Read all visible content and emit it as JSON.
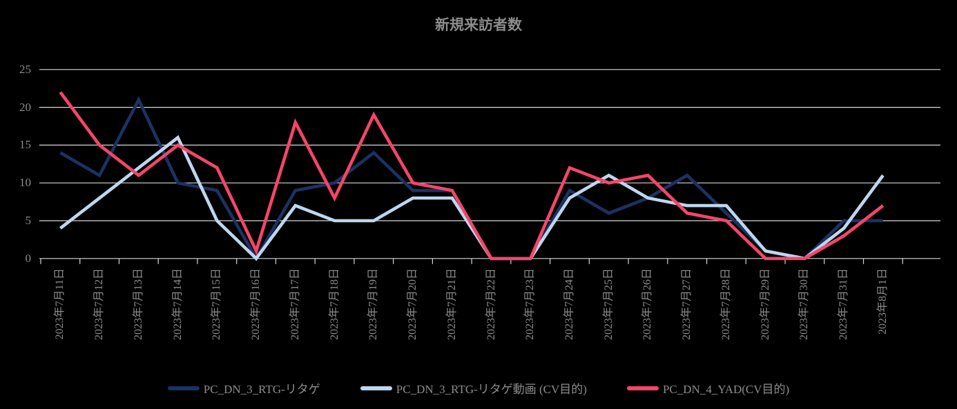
{
  "colors": {
    "background": "#000000",
    "text": "#8c8c8c",
    "gridline": "#d9d9d9"
  },
  "chart_data": {
    "type": "line",
    "title": "新規来訪者数",
    "categories": [
      "2023年7月11日",
      "2023年7月12日",
      "2023年7月13日",
      "2023年7月14日",
      "2023年7月15日",
      "2023年7月16日",
      "2023年7月17日",
      "2023年7月18日",
      "2023年7月19日",
      "2023年7月20日",
      "2023年7月21日",
      "2023年7月22日",
      "2023年7月23日",
      "2023年7月24日",
      "2023年7月25日",
      "2023年7月26日",
      "2023年7月27日",
      "2023年7月28日",
      "2023年7月29日",
      "2023年7月30日",
      "2023年7月31日",
      "2023年8月1日"
    ],
    "series": [
      {
        "name": "PC_DN_3_RTG-リタゲ",
        "color": "#1b3262",
        "values": [
          14,
          11,
          21,
          10,
          9,
          0,
          9,
          10,
          14,
          9,
          9,
          0,
          0,
          9,
          6,
          8,
          11,
          6,
          1,
          0,
          5,
          5
        ]
      },
      {
        "name": "PC_DN_3_RTG-リタゲ動画 (CV目的)",
        "color": "#bdd7ee",
        "values": [
          4,
          8,
          12,
          16,
          5,
          0,
          7,
          5,
          5,
          8,
          8,
          0,
          0,
          8,
          11,
          8,
          7,
          7,
          1,
          0,
          4,
          11
        ]
      },
      {
        "name": "PC_DN_4_YAD(CV目的)",
        "color": "#f5456a",
        "values": [
          22,
          15,
          11,
          15,
          12,
          1,
          18,
          8,
          19,
          10,
          9,
          0,
          0,
          12,
          10,
          11,
          6,
          5,
          0,
          0,
          3,
          7
        ]
      }
    ],
    "ylim": [
      0,
      25
    ],
    "yticks": [
      0,
      5,
      10,
      15,
      20,
      25
    ],
    "grid": true,
    "legend_position": "bottom"
  }
}
